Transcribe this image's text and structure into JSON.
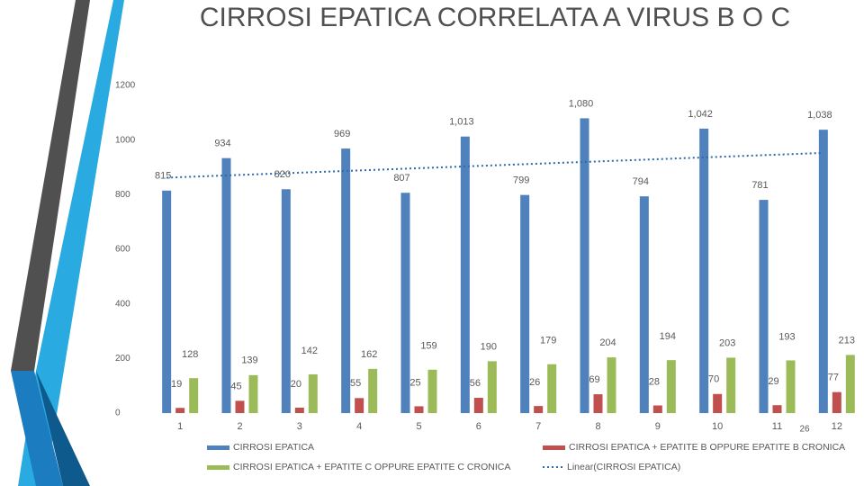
{
  "chart_data": {
    "type": "bar",
    "title": "CIRROSI EPATICA CORRELATA A VIRUS B O C",
    "categories": [
      "1",
      "2",
      "3",
      "4",
      "5",
      "6",
      "7",
      "8",
      "9",
      "10",
      "11",
      "12"
    ],
    "series": [
      {
        "name": "CIRROSI EPATICA",
        "color": "#4f81bd",
        "values": [
          815,
          934,
          820,
          969,
          807,
          1013,
          799,
          1080,
          794,
          1042,
          781,
          1038
        ],
        "value_labels": [
          "815",
          "934",
          "820",
          "969",
          "807",
          "1,013",
          "799",
          "1,080",
          "794",
          "1,042",
          "781",
          "1,038"
        ]
      },
      {
        "name": "CIRROSI EPATICA + EPATITE B OPPURE EPATITE B CRONICA",
        "color": "#c0504d",
        "values": [
          19,
          45,
          20,
          55,
          25,
          56,
          26,
          69,
          28,
          70,
          29,
          77
        ]
      },
      {
        "name": "CIRROSI EPATICA + EPATITE C OPPURE EPATITE C CRONICA",
        "color": "#9bbb59",
        "values": [
          128,
          139,
          142,
          162,
          159,
          190,
          179,
          204,
          194,
          203,
          193,
          213
        ]
      }
    ],
    "trendline": {
      "name": "Linear(CIRROSI EPATICA)",
      "series": 0,
      "color": "#2e6aa8"
    },
    "annotation": "26",
    "ylim": [
      0,
      1200
    ],
    "yticks": [
      0,
      200,
      400,
      600,
      800,
      1000,
      1200
    ],
    "grid": false,
    "legend": "bottom"
  }
}
